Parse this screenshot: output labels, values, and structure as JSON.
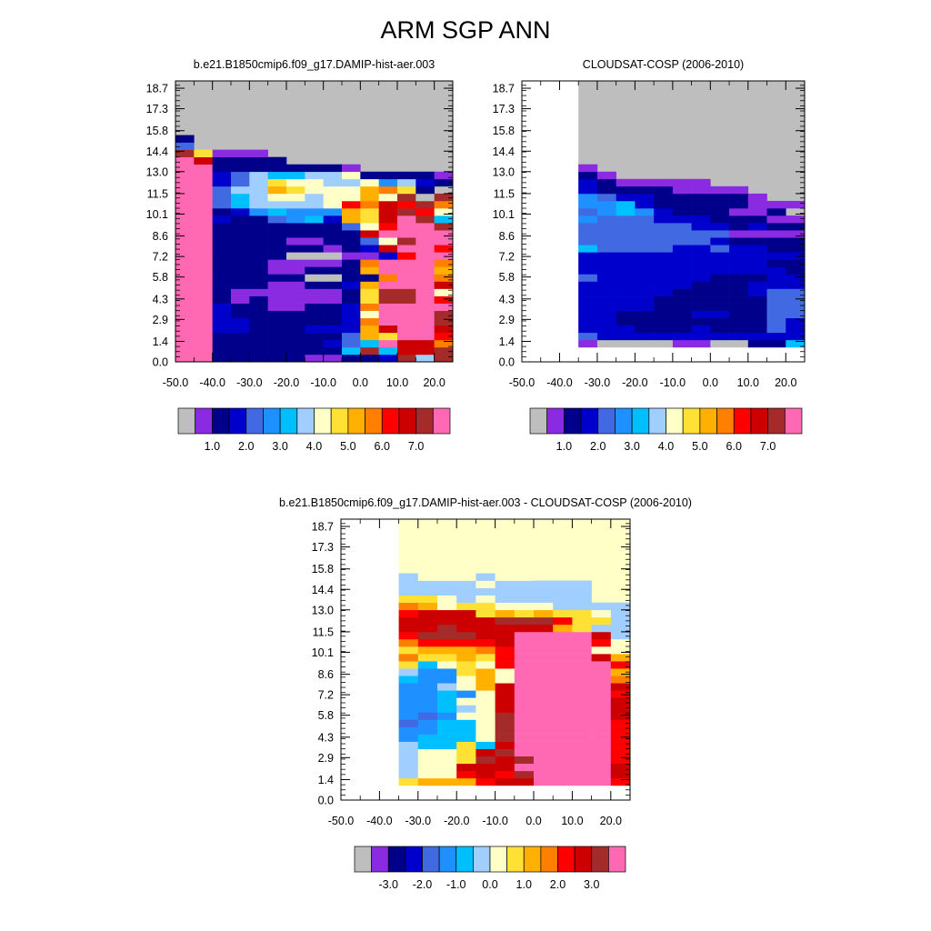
{
  "figure_title": "ARM SGP ANN",
  "colors": {
    "missing": "#bebebe",
    "outline": "#000000",
    "levels_palette": [
      "#bebebe",
      "#8a2be2",
      "#00008b",
      "#0000cd",
      "#4169e1",
      "#1e90ff",
      "#00bfff",
      "#a0cfff",
      "#ffffc8",
      "#ffe135",
      "#ffb000",
      "#ff7f00",
      "#ff0000",
      "#cd0000",
      "#a52a2a",
      "#ff69b4"
    ]
  },
  "chart_data": [
    {
      "type": "heatmap",
      "title": "b.e21.B1850cmip6.f09_g17.DAMIP-hist-aer.003",
      "x_ticks": [
        "-50.0",
        "-40.0",
        "-30.0",
        "-20.0",
        "-10.0",
        "0.0",
        "10.0",
        "20.0"
      ],
      "x_tick_values": [
        -50,
        -40,
        -30,
        -20,
        -10,
        0,
        10,
        20
      ],
      "xlim": [
        -50,
        25
      ],
      "y_ticks": [
        "0.0",
        "1.4",
        "2.9",
        "4.3",
        "5.8",
        "7.2",
        "8.6",
        "10.1",
        "11.5",
        "13.0",
        "14.4",
        "15.8",
        "17.3",
        "18.7"
      ],
      "y_tick_values": [
        0,
        1.4,
        2.9,
        4.3,
        5.8,
        7.2,
        8.6,
        10.1,
        11.5,
        13.0,
        14.4,
        15.8,
        17.3,
        18.7
      ],
      "ylim": [
        0,
        19.2
      ],
      "colorbar_labels": [
        "1.0",
        "2.0",
        "3.0",
        "4.0",
        "5.0",
        "6.0",
        "7.0"
      ],
      "colorbar_colors": [
        "#bebebe",
        "#8a2be2",
        "#00008b",
        "#0000cd",
        "#4169e1",
        "#1e90ff",
        "#00bfff",
        "#a0cfff",
        "#ffffc8",
        "#ffe135",
        "#ffb000",
        "#ff7f00",
        "#ff0000",
        "#cd0000",
        "#a52a2a",
        "#ff69b4"
      ],
      "background": "#bebebe",
      "rows": [
        {
          "y": [
            0,
            0.5
          ],
          "x": -50,
          "cells": "FF2222211223E7E300"
        },
        {
          "y": [
            0.5,
            1.0
          ],
          "x": -50,
          "cells": "FF22222226E6DDE500"
        },
        {
          "y": [
            1.0,
            1.5
          ],
          "x": -50,
          "cells": "FF222222346FDDBE23"
        },
        {
          "y": [
            1.5,
            2.0
          ],
          "x": -50,
          "cells": "FF22222224A9FFCB8"
        },
        {
          "y": [
            2.0,
            2.5
          ],
          "x": -50,
          "cells": "FF33222333ADFFD8"
        },
        {
          "y": [
            2.5,
            3.0
          ],
          "x": -50,
          "cells": "FF33222223BFFFE9"
        },
        {
          "y": [
            3.0,
            3.5
          ],
          "x": -50,
          "cells": "FF322222238FFFEA"
        },
        {
          "y": [
            3.5,
            4.0
          ],
          "x": -50,
          "cells": "FF32211223BFFFF9888"
        },
        {
          "y": [
            4.0,
            4.5
          ],
          "x": -50,
          "cells": "FF212111129EEFC88711"
        },
        {
          "y": [
            4.5,
            5.0
          ],
          "x": -50,
          "cells": "FF211111129EEF88811"
        },
        {
          "y": [
            5.0,
            5.5
          ],
          "x": -50,
          "cells": "FF22211223AFFFD887"
        },
        {
          "y": [
            5.5,
            6.0
          ],
          "x": -50,
          "cells": "FF222220022BFFB885"
        },
        {
          "y": [
            6.0,
            6.5
          ],
          "x": -50,
          "cells": "FF22211222AFFFA88"
        },
        {
          "y": [
            6.5,
            7.0
          ],
          "x": -50,
          "cells": "FF22211112BFFFB88"
        },
        {
          "y": [
            7.0,
            7.5
          ],
          "x": -50,
          "cells": "FF2222000113CFFB983"
        },
        {
          "y": [
            7.5,
            8.0
          ],
          "x": -50,
          "cells": "FF222222123DFFC952"
        },
        {
          "y": [
            8.0,
            8.5
          ],
          "x": -50,
          "cells": "FF2222112248EFFB82"
        },
        {
          "y": [
            8.5,
            9.0
          ],
          "x": -50,
          "cells": "FF22222222DFFFFA71"
        },
        {
          "y": [
            9.0,
            9.5
          ],
          "x": -50,
          "cells": "FF222222248CFFE77"
        },
        {
          "y": [
            9.5,
            10.0
          ],
          "x": -50,
          "cells": "FF3224563A9DFE657"
        },
        {
          "y": [
            10.0,
            10.5
          ],
          "x": -50,
          "cells": "FF2356555A9DEC86"
        },
        {
          "y": [
            10.5,
            11.0
          ],
          "x": -50,
          "cells": "FF4677778CBDCEBA"
        },
        {
          "y": [
            11.0,
            11.5
          ],
          "x": -50,
          "cells": "FF46788788A8E0E2"
        },
        {
          "y": [
            11.5,
            12.0
          ],
          "x": -50,
          "cells": "FF477A9888AB92"
        },
        {
          "y": [
            12.0,
            12.5
          ],
          "x": -50,
          "cells": "FF3479887785732"
        },
        {
          "y": [
            12.5,
            13.0
          ],
          "x": -50,
          "cells": "FF3476677822221"
        },
        {
          "y": [
            13.0,
            13.5
          ],
          "x": -50,
          "cells": "FF22222221"
        },
        {
          "y": [
            13.5,
            14.0
          ],
          "x": -50,
          "cells": "FD2222"
        },
        {
          "y": [
            14.0,
            14.5
          ],
          "x": -50,
          "cells": "E9111"
        },
        {
          "y": [
            14.5,
            15.0
          ],
          "x": -50,
          "cells": "4"
        },
        {
          "y": [
            15.0,
            15.5
          ],
          "x": -50,
          "cells": "2"
        }
      ]
    },
    {
      "type": "heatmap",
      "title": "CLOUDSAT-COSP (2006-2010)",
      "x_ticks": [
        "-50.0",
        "-40.0",
        "-30.0",
        "-20.0",
        "-10.0",
        "0.0",
        "10.0",
        "20.0"
      ],
      "x_tick_values": [
        -50,
        -40,
        -30,
        -20,
        -10,
        0,
        10,
        20
      ],
      "xlim": [
        -50,
        25
      ],
      "y_ticks": [
        "0.0",
        "1.4",
        "2.9",
        "4.3",
        "5.8",
        "7.2",
        "8.6",
        "10.1",
        "11.5",
        "13.0",
        "14.4",
        "15.8",
        "17.3",
        "18.7"
      ],
      "y_tick_values": [
        0,
        1.4,
        2.9,
        4.3,
        5.8,
        7.2,
        8.6,
        10.1,
        11.5,
        13.0,
        14.4,
        15.8,
        17.3,
        18.7
      ],
      "ylim": [
        0,
        19.2
      ],
      "colorbar_labels": [
        "1.0",
        "2.0",
        "3.0",
        "4.0",
        "5.0",
        "6.0",
        "7.0"
      ],
      "colorbar_colors": [
        "#bebebe",
        "#8a2be2",
        "#00008b",
        "#0000cd",
        "#4169e1",
        "#1e90ff",
        "#00bfff",
        "#a0cfff",
        "#ffffc8",
        "#ffe135",
        "#ffb000",
        "#ff7f00",
        "#ff0000",
        "#cd0000",
        "#a52a2a",
        "#ff69b4"
      ],
      "background": "#bebebe",
      "blank_region": {
        "x": [
          -50,
          -35
        ],
        "y_full": true,
        "bottom_strip": {
          "x": [
            -35,
            25
          ],
          "y": [
            0,
            1.0
          ]
        }
      },
      "rows": [
        {
          "y": [
            1.0,
            1.5
          ],
          "x": -35,
          "cells": "1000011002261"
        },
        {
          "y": [
            1.5,
            2.0
          ],
          "x": -35,
          "cells": "4333333333332"
        },
        {
          "y": [
            2.0,
            2.5
          ],
          "x": -35,
          "cells": "3332223222432"
        },
        {
          "y": [
            2.5,
            3.0
          ],
          "x": -35,
          "cells": "3322222222433"
        },
        {
          "y": [
            3.0,
            3.5
          ],
          "x": -35,
          "cells": "3322223322443"
        },
        {
          "y": [
            3.5,
            4.0
          ],
          "x": -35,
          "cells": "3333222222443"
        },
        {
          "y": [
            4.0,
            4.5
          ],
          "x": -35,
          "cells": "3333222222443"
        },
        {
          "y": [
            4.5,
            5.0
          ],
          "x": -35,
          "cells": "3333322223443"
        },
        {
          "y": [
            5.0,
            5.5
          ],
          "x": -35,
          "cells": "3333332223333"
        },
        {
          "y": [
            5.5,
            6.0
          ],
          "x": -35,
          "cells": "4333333222333"
        },
        {
          "y": [
            6.0,
            6.5
          ],
          "x": -35,
          "cells": "3333333333323"
        },
        {
          "y": [
            6.5,
            7.0
          ],
          "x": -35,
          "cells": "3333333333223"
        },
        {
          "y": [
            7.0,
            7.5
          ],
          "x": -35,
          "cells": "3333333333333"
        },
        {
          "y": [
            7.5,
            8.0
          ],
          "x": -35,
          "cells": "6444433433223"
        },
        {
          "y": [
            8.0,
            8.5
          ],
          "x": -35,
          "cells": "4444444322221"
        },
        {
          "y": [
            8.5,
            9.0
          ],
          "x": -35,
          "cells": "4444444411111"
        },
        {
          "y": [
            9.0,
            9.5
          ],
          "x": -35,
          "cells": "44444433232211"
        },
        {
          "y": [
            9.5,
            10.0
          ],
          "x": -35,
          "cells": "5444333222111"
        },
        {
          "y": [
            10.0,
            10.5
          ],
          "x": -35,
          "cells": "45653222112"
        },
        {
          "y": [
            10.5,
            11.0
          ],
          "x": -35,
          "cells": "556322222111"
        },
        {
          "y": [
            11.0,
            11.5
          ],
          "x": -35,
          "cells": "5433222221"
        },
        {
          "y": [
            11.5,
            12.0
          ],
          "x": -35,
          "cells": "322221111"
        },
        {
          "y": [
            12.0,
            12.5
          ],
          "x": -35,
          "cells": "3211111"
        },
        {
          "y": [
            12.5,
            13.0
          ],
          "x": -35,
          "cells": "21"
        },
        {
          "y": [
            13.0,
            13.5
          ],
          "x": -35,
          "cells": "1"
        }
      ]
    },
    {
      "type": "heatmap",
      "title": "b.e21.B1850cmip6.f09_g17.DAMIP-hist-aer.003 - CLOUDSAT-COSP (2006-2010)",
      "x_ticks": [
        "-50.0",
        "-40.0",
        "-30.0",
        "-20.0",
        "-10.0",
        "0.0",
        "10.0",
        "20.0"
      ],
      "x_tick_values": [
        -50,
        -40,
        -30,
        -20,
        -10,
        0,
        10,
        20
      ],
      "xlim": [
        -50,
        25
      ],
      "y_ticks": [
        "0.0",
        "1.4",
        "2.9",
        "4.3",
        "5.8",
        "7.2",
        "8.6",
        "10.1",
        "11.5",
        "13.0",
        "14.4",
        "15.8",
        "17.3",
        "18.7"
      ],
      "y_tick_values": [
        0,
        1.4,
        2.9,
        4.3,
        5.8,
        7.2,
        8.6,
        10.1,
        11.5,
        13.0,
        14.4,
        15.8,
        17.3,
        18.7
      ],
      "ylim": [
        0,
        19.2
      ],
      "colorbar_labels": [
        "-3.0",
        "-2.0",
        "-1.0",
        "0.0",
        "1.0",
        "2.0",
        "3.0"
      ],
      "colorbar_colors": [
        "#bebebe",
        "#8a2be2",
        "#00008b",
        "#0000cd",
        "#4169e1",
        "#1e90ff",
        "#00bfff",
        "#a0cfff",
        "#ffffc8",
        "#ffe135",
        "#ffb000",
        "#ff7f00",
        "#ff0000",
        "#cd0000",
        "#a52a2a",
        "#ff69b4"
      ],
      "background": "#ffffc8",
      "blank_region": {
        "x": [
          -50,
          -35
        ],
        "y_full": true,
        "bottom_strip": {
          "x": [
            -35,
            25
          ],
          "y": [
            0,
            1.0
          ]
        }
      },
      "rows": [
        {
          "y": [
            1.0,
            1.5
          ],
          "x": -35,
          "cells": "9AAACDDFFFFCCC"
        },
        {
          "y": [
            1.5,
            2.0
          ],
          "x": -35,
          "cells": "788CDCEFFFFDCC"
        },
        {
          "y": [
            2.0,
            2.5
          ],
          "x": -35,
          "cells": "788DDDFFFFFDC89"
        },
        {
          "y": [
            2.5,
            3.0
          ],
          "x": -35,
          "cells": "7889EDEFFFFCCD9"
        },
        {
          "y": [
            3.0,
            3.5
          ],
          "x": -35,
          "cells": "7889DEFFFFFCDA9"
        },
        {
          "y": [
            3.5,
            4.0
          ],
          "x": -35,
          "cells": "76696DFFFFFCBA8"
        },
        {
          "y": [
            4.0,
            4.5
          ],
          "x": -35,
          "cells": "56668EFFFFFCA8887"
        },
        {
          "y": [
            4.5,
            5.0
          ],
          "x": -35,
          "cells": "55668EFFFFFCA8887"
        },
        {
          "y": [
            5.0,
            5.5
          ],
          "x": -35,
          "cells": "45668EFFFFFCA888"
        },
        {
          "y": [
            5.5,
            6.0
          ],
          "x": -35,
          "cells": "54588EFFFFFDA888"
        },
        {
          "y": [
            6.0,
            6.5
          ],
          "x": -35,
          "cells": "55678DFFFFFD8888"
        },
        {
          "y": [
            6.5,
            7.0
          ],
          "x": -35,
          "cells": "55688DFFFFFD8888"
        },
        {
          "y": [
            7.0,
            7.5
          ],
          "x": -35,
          "cells": "55658DFFFFFC8788"
        },
        {
          "y": [
            7.5,
            8.0
          ],
          "x": -35,
          "cells": "5578ADFFFFFD8777"
        },
        {
          "y": [
            8.0,
            8.5
          ],
          "x": -35,
          "cells": "6558A8FFFFFB9777"
        },
        {
          "y": [
            8.5,
            9.0
          ],
          "x": -35,
          "cells": "7559A8FFFFFA7777"
        },
        {
          "y": [
            9.0,
            9.5
          ],
          "x": -35,
          "cells": "96898CFFFFFC7777"
        },
        {
          "y": [
            9.5,
            10.0
          ],
          "x": -35,
          "cells": "B99A9CFFFFDA7777"
        },
        {
          "y": [
            10.0,
            10.5
          ],
          "x": -35,
          "cells": "9AAABCFFFF887777"
        },
        {
          "y": [
            10.5,
            11.0
          ],
          "x": -35,
          "cells": "BCCCCDFFFFC877788"
        },
        {
          "y": [
            11.0,
            11.5
          ],
          "x": -35,
          "cells": "CEEEDDFFFFD777778"
        },
        {
          "y": [
            11.5,
            12.0
          ],
          "x": -35,
          "cells": "DDEDDDDDA977777777"
        },
        {
          "y": [
            12.0,
            12.5
          ],
          "x": -35,
          "cells": "DDDDDEEEC99777777"
        },
        {
          "y": [
            12.5,
            13.0
          ],
          "x": -35,
          "cells": "CDDD9A9A998777"
        },
        {
          "y": [
            13.0,
            13.5
          ],
          "x": -35,
          "cells": "BA8998887777"
        },
        {
          "y": [
            13.5,
            14.0
          ],
          "x": -35,
          "cells": "9987877777"
        },
        {
          "y": [
            14.0,
            14.5
          ],
          "x": -35,
          "cells": "7777777777"
        },
        {
          "y": [
            14.5,
            15.0
          ],
          "x": -35,
          "cells": "7777877777"
        },
        {
          "y": [
            15.0,
            15.5
          ],
          "x": -35,
          "cells": "7888788"
        }
      ]
    }
  ]
}
